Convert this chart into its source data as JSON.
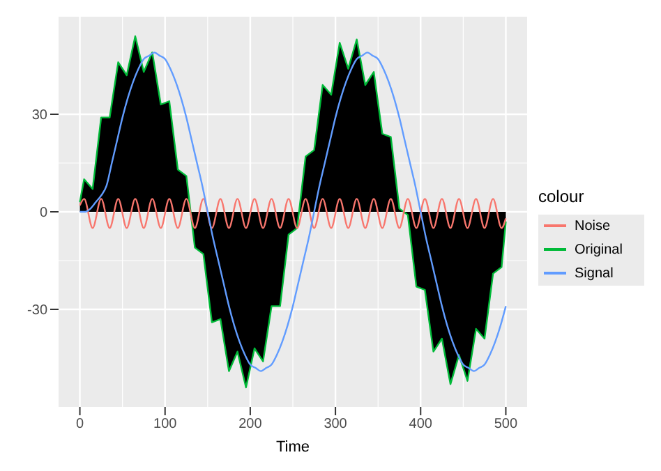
{
  "chart_data": {
    "type": "line",
    "xlabel": "Time",
    "legend_title": "colour",
    "xlim": [
      -25,
      525
    ],
    "xticks": [
      0,
      100,
      200,
      300,
      400,
      500
    ],
    "ylim": [
      -60,
      60
    ],
    "yticks": [
      -30,
      0,
      30
    ],
    "grid": true,
    "legend": "right",
    "marker": "none",
    "series": [
      {
        "name": "Noise",
        "color": "#f8766d",
        "x": [
          0,
          5,
          15,
          25,
          35,
          45,
          55,
          65,
          75,
          85,
          95,
          105,
          115,
          125,
          135,
          145,
          155,
          165,
          175,
          185,
          195,
          205,
          215,
          225,
          235,
          245,
          255,
          265,
          275,
          285,
          295,
          305,
          315,
          325,
          335,
          345,
          355,
          365,
          375,
          385,
          395,
          405,
          415,
          425,
          435,
          445,
          455,
          465,
          475,
          485,
          495,
          500
        ],
        "values": [
          2,
          4,
          -5,
          4,
          -5,
          4,
          -5,
          4,
          -5,
          4,
          -5,
          4,
          -5,
          4,
          -5,
          4,
          -5,
          4,
          -5,
          4,
          -5,
          4,
          -5,
          4,
          -5,
          4,
          -5,
          4,
          -5,
          4,
          -5,
          4,
          -5,
          4,
          -5,
          4,
          -5,
          4,
          -5,
          4,
          -5,
          4,
          -5,
          4,
          -5,
          4,
          -5,
          4,
          -5,
          4,
          -5,
          -2
        ]
      },
      {
        "name": "Original",
        "type": "area",
        "color": "#00ba38",
        "x": [
          0,
          5,
          15,
          25,
          35,
          45,
          55,
          65,
          75,
          85,
          95,
          105,
          115,
          125,
          135,
          145,
          155,
          165,
          175,
          185,
          195,
          205,
          215,
          225,
          235,
          245,
          255,
          265,
          275,
          285,
          295,
          305,
          315,
          325,
          335,
          345,
          355,
          365,
          375,
          385,
          395,
          405,
          415,
          425,
          435,
          445,
          455,
          465,
          475,
          485,
          495,
          500
        ],
        "values": [
          3,
          10,
          7,
          29,
          29,
          46,
          42,
          54,
          43,
          49,
          33,
          34,
          13,
          11,
          -11,
          -13,
          -34,
          -33,
          -49,
          -43,
          -54,
          -42,
          -46,
          -29,
          -29,
          -7,
          -5,
          17,
          19,
          39,
          36,
          52,
          44,
          53,
          39,
          43,
          24,
          23,
          1,
          -1,
          -23,
          -24,
          -43,
          -39,
          -53,
          -44,
          -52,
          -36,
          -39,
          -19,
          -17,
          -3
        ]
      },
      {
        "name": "Signal",
        "color": "#619cff",
        "x": [
          0,
          6.25,
          12.5,
          18.75,
          25,
          31.25,
          37.5,
          43.75,
          50,
          56.25,
          62.5,
          68.75,
          75,
          81.25,
          87.5,
          93.75,
          100,
          106.25,
          112.5,
          118.75,
          125,
          131.25,
          137.5,
          143.75,
          150,
          156.25,
          162.5,
          168.75,
          175,
          181.25,
          187.5,
          193.75,
          200,
          206.25,
          212.5,
          218.75,
          225,
          231.25,
          237.5,
          243.75,
          250,
          256.25,
          262.5,
          268.75,
          275,
          281.25,
          287.5,
          293.75,
          300,
          306.25,
          312.5,
          318.75,
          325,
          331.25,
          337.5,
          343.75,
          350,
          356.25,
          362.5,
          368.75,
          375,
          381.25,
          387.5,
          393.75,
          400,
          406.25,
          412.5,
          418.75,
          425,
          431.25,
          437.5,
          443.75,
          450,
          456.25,
          462.5,
          468.75,
          475,
          481.25,
          487.5,
          493.75,
          500
        ],
        "values": [
          0,
          0,
          1,
          3,
          5,
          8,
          15,
          22,
          29,
          35,
          40,
          44,
          47,
          48,
          49,
          48,
          47,
          44,
          40,
          35,
          29,
          22,
          15,
          8,
          0,
          -8,
          -15,
          -22,
          -29,
          -35,
          -40,
          -44,
          -47,
          -48,
          -49,
          -48,
          -47,
          -44,
          -40,
          -35,
          -29,
          -22,
          -15,
          -8,
          0,
          8,
          15,
          22,
          29,
          35,
          40,
          44,
          47,
          48,
          49,
          48,
          47,
          44,
          40,
          35,
          29,
          22,
          15,
          8,
          0,
          -8,
          -15,
          -22,
          -29,
          -35,
          -40,
          -44,
          -47,
          -48,
          -49,
          -48,
          -47,
          -44,
          -40,
          -35,
          -29
        ]
      }
    ]
  }
}
